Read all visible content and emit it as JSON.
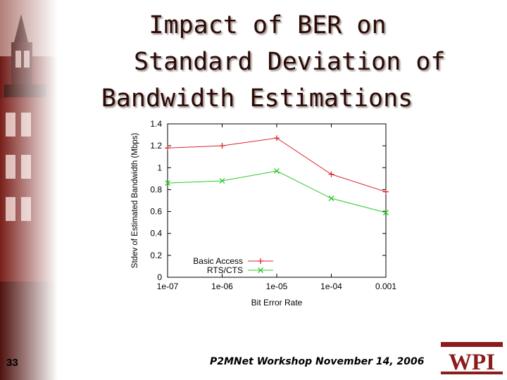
{
  "slide": {
    "title_line1": "Impact of BER on",
    "title_line2": "Standard Deviation of",
    "title_line3": "Bandwidth Estimations",
    "footer": "P2MNet Workshop November 14, 2006",
    "number": "33",
    "logo_text": "WPI"
  },
  "colors": {
    "basic": "#d9262c",
    "rts": "#2ec92e",
    "title": "#2b0a05",
    "logo": "#8a1c1c"
  },
  "chart_data": {
    "type": "line",
    "title": "",
    "xlabel": "Bit Error Rate",
    "ylabel": "Stdev of Estimated Bandwidth (Mbps)",
    "categories": [
      "1e-07",
      "1e-06",
      "1e-05",
      "1e-04",
      "0.001"
    ],
    "yticks": [
      "0",
      "0.2",
      "0.4",
      "0.6",
      "0.8",
      "1",
      "1.2",
      "1.4"
    ],
    "ylim": [
      0,
      1.4
    ],
    "legend_position": "bottom-left",
    "series": [
      {
        "name": "Basic Access",
        "marker": "+",
        "values": [
          1.18,
          1.2,
          1.27,
          0.94,
          0.78
        ]
      },
      {
        "name": "RTS/CTS",
        "marker": "x",
        "values": [
          0.86,
          0.88,
          0.97,
          0.72,
          0.59
        ]
      }
    ]
  }
}
